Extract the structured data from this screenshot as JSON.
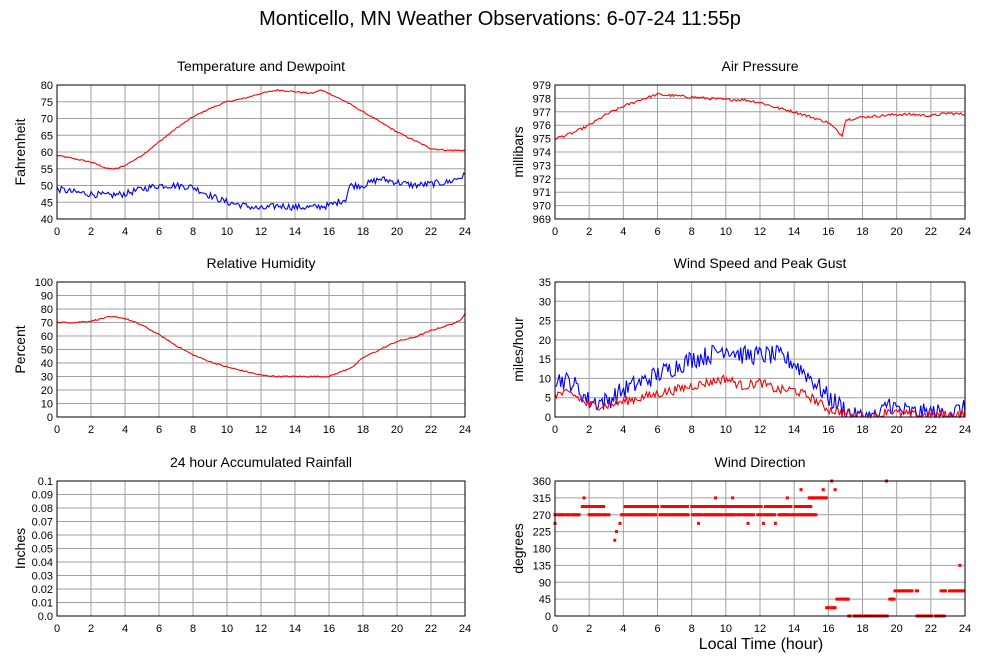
{
  "title": "Monticello, MN Weather Observations: 6-07-24 11:55p",
  "x_axis_title": "Local Time (hour)",
  "colors": {
    "red": "#ff0000",
    "blue": "#0000ff",
    "grid": "#a0a0a0",
    "frame": "#000000"
  },
  "chart_data": [
    {
      "id": "temp",
      "type": "line",
      "title": "Temperature and Dewpoint",
      "ylabel": "Fahrenheit",
      "xlim": [
        0,
        24
      ],
      "ylim": [
        40,
        80
      ],
      "xticks": [
        0,
        2,
        4,
        6,
        8,
        10,
        12,
        14,
        16,
        18,
        20,
        22,
        24
      ],
      "yticks": [
        40,
        45,
        50,
        55,
        60,
        65,
        70,
        75,
        80
      ],
      "grid": true,
      "series": [
        {
          "color": "#ff0000",
          "noise": 0.2,
          "x": [
            0,
            1,
            2,
            3,
            3.5,
            4,
            5,
            6,
            7,
            8,
            9,
            10,
            11,
            12,
            13,
            14,
            15,
            15.5,
            16,
            17,
            18,
            19,
            20,
            21,
            22,
            23,
            24
          ],
          "y": [
            59,
            58,
            57,
            55,
            55,
            56,
            59,
            63,
            67,
            70.5,
            73,
            75,
            76,
            77.5,
            78.5,
            78,
            77.5,
            78.5,
            77.5,
            75,
            72,
            69,
            66,
            63.5,
            61,
            60.5,
            60.5
          ]
        },
        {
          "color": "#0000ff",
          "noise": 1.0,
          "x": [
            0,
            1,
            2,
            3,
            4,
            5,
            6,
            7,
            8,
            9,
            10,
            11,
            12,
            13,
            14,
            15,
            16,
            17,
            17.2,
            18,
            19,
            20,
            21,
            22,
            23,
            24
          ],
          "y": [
            49,
            48,
            47.5,
            47,
            47.5,
            49,
            50,
            50,
            49.5,
            47,
            45,
            44,
            43,
            44,
            43.5,
            43.5,
            44,
            46,
            50,
            50,
            52,
            51,
            50,
            50.5,
            51,
            53
          ]
        }
      ]
    },
    {
      "id": "pressure",
      "type": "line",
      "title": "Air Pressure",
      "ylabel": "millibars",
      "xlim": [
        0,
        24
      ],
      "ylim": [
        969,
        979
      ],
      "xticks": [
        0,
        2,
        4,
        6,
        8,
        10,
        12,
        14,
        16,
        18,
        20,
        22,
        24
      ],
      "yticks": [
        969,
        970,
        971,
        972,
        973,
        974,
        975,
        976,
        977,
        978,
        979
      ],
      "grid": true,
      "series": [
        {
          "color": "#ff0000",
          "noise": 0.1,
          "x": [
            0,
            1,
            2,
            3,
            4,
            5,
            6,
            7,
            8,
            9,
            10,
            11,
            12,
            13,
            14,
            15,
            16,
            16.5,
            16.8,
            17,
            18,
            19,
            20,
            21,
            22,
            23,
            24
          ],
          "y": [
            975,
            975.4,
            976,
            976.8,
            977.4,
            977.9,
            978.3,
            978.2,
            978.1,
            978.0,
            977.9,
            977.9,
            977.7,
            977.3,
            977.0,
            976.6,
            976.2,
            975.6,
            975.2,
            976.4,
            976.6,
            976.7,
            976.8,
            976.8,
            976.7,
            976.9,
            976.8
          ]
        }
      ]
    },
    {
      "id": "humidity",
      "type": "line",
      "title": "Relative Humidity",
      "ylabel": "Percent",
      "xlim": [
        0,
        24
      ],
      "ylim": [
        0,
        100
      ],
      "xticks": [
        0,
        2,
        4,
        6,
        8,
        10,
        12,
        14,
        16,
        18,
        20,
        22,
        24
      ],
      "yticks": [
        0,
        10,
        20,
        30,
        40,
        50,
        60,
        70,
        80,
        90,
        100
      ],
      "grid": true,
      "series": [
        {
          "color": "#ff0000",
          "noise": 0.5,
          "x": [
            0,
            1,
            2,
            3,
            3.5,
            4,
            5,
            6,
            7,
            8,
            9,
            10,
            11,
            12,
            13,
            14,
            15,
            16,
            17,
            17.5,
            18,
            19,
            20,
            21,
            22,
            23,
            23.7,
            24
          ],
          "y": [
            70,
            70,
            71,
            74,
            74,
            73,
            68,
            61,
            53,
            46,
            41,
            37,
            34,
            31,
            30,
            30,
            30,
            30,
            35,
            38,
            44,
            50,
            56,
            59,
            64,
            68,
            71,
            77
          ]
        }
      ]
    },
    {
      "id": "wind",
      "type": "line",
      "title": "Wind Speed and Peak Gust",
      "ylabel": "miles/hour",
      "xlim": [
        0,
        24
      ],
      "ylim": [
        0,
        35
      ],
      "xticks": [
        0,
        2,
        4,
        6,
        8,
        10,
        12,
        14,
        16,
        18,
        20,
        22,
        24
      ],
      "yticks": [
        0,
        5,
        10,
        15,
        20,
        25,
        30,
        35
      ],
      "grid": true,
      "series": [
        {
          "color": "#0000ff",
          "noise": 2.5,
          "x": [
            0,
            1,
            2,
            3,
            4,
            5,
            6,
            7,
            8,
            9,
            10,
            11,
            12,
            13,
            14,
            15,
            16,
            17,
            17.5,
            19,
            19.5,
            20,
            21,
            22,
            23,
            24
          ],
          "y": [
            10,
            9,
            4,
            4,
            7,
            9,
            11,
            13,
            15,
            16,
            18,
            16,
            16,
            16,
            14,
            10,
            5,
            2,
            0,
            0,
            4,
            2,
            1,
            1,
            1,
            2
          ]
        },
        {
          "color": "#ff0000",
          "noise": 1.2,
          "x": [
            0,
            1,
            2,
            3,
            4,
            5,
            6,
            7,
            8,
            9,
            10,
            11,
            12,
            13,
            14,
            15,
            16,
            17,
            17.5,
            19,
            19.5,
            20,
            21,
            22,
            23,
            24
          ],
          "y": [
            6,
            6,
            3,
            3,
            4,
            5,
            6,
            7,
            8,
            9,
            10,
            8,
            9,
            7,
            7,
            5,
            2,
            1,
            0,
            0,
            2,
            1,
            0.5,
            0.5,
            0.5,
            1
          ]
        }
      ]
    },
    {
      "id": "rain",
      "type": "line",
      "title": "24 hour Accumulated Rainfall",
      "ylabel": "Inches",
      "xlim": [
        0,
        24
      ],
      "ylim": [
        0,
        0.1
      ],
      "xticks": [
        0,
        2,
        4,
        6,
        8,
        10,
        12,
        14,
        16,
        18,
        20,
        22,
        24
      ],
      "yticks": [
        "0.0",
        "0.01",
        "0.02",
        "0.03",
        "0.04",
        "0.05",
        "0.06",
        "0.07",
        "0.08",
        "0.09",
        "0.1"
      ],
      "grid": true,
      "series": [
        {
          "color": "#ff0000",
          "noise": 0,
          "x": [
            0,
            24
          ],
          "y": [
            0,
            0
          ]
        }
      ]
    },
    {
      "id": "direction",
      "type": "scatter",
      "title": "Wind Direction",
      "ylabel": "degrees",
      "xlim": [
        0,
        24
      ],
      "ylim": [
        0,
        360
      ],
      "xticks": [
        0,
        2,
        4,
        6,
        8,
        10,
        12,
        14,
        16,
        18,
        20,
        22,
        24
      ],
      "yticks": [
        0,
        45,
        90,
        135,
        180,
        225,
        270,
        315,
        360
      ],
      "grid": true,
      "series": [
        {
          "color": "#ff0000",
          "segments": [
            {
              "x0": 0,
              "x1": 1.5,
              "y": 270
            },
            {
              "x0": 1.6,
              "x1": 2.9,
              "y": 292
            },
            {
              "x0": 2.0,
              "x1": 3.3,
              "y": 270
            },
            {
              "x0": 3.9,
              "x1": 15.3,
              "y": 270
            },
            {
              "x0": 4.1,
              "x1": 15.0,
              "y": 292
            },
            {
              "x0": 14.8,
              "x1": 15.9,
              "y": 315
            },
            {
              "x0": 15.9,
              "x1": 16.4,
              "y": 22
            },
            {
              "x0": 16.5,
              "x1": 17.2,
              "y": 45
            },
            {
              "x0": 17.2,
              "x1": 19.5,
              "y": 0
            },
            {
              "x0": 19.6,
              "x1": 19.9,
              "y": 45
            },
            {
              "x0": 19.9,
              "x1": 21.3,
              "y": 67
            },
            {
              "x0": 21.2,
              "x1": 22.8,
              "y": 0
            },
            {
              "x0": 22.6,
              "x1": 24,
              "y": 67
            }
          ],
          "points": [
            {
              "x": 0,
              "y": 247
            },
            {
              "x": 1.7,
              "y": 315
            },
            {
              "x": 3.5,
              "y": 202
            },
            {
              "x": 3.6,
              "y": 225
            },
            {
              "x": 3.8,
              "y": 247
            },
            {
              "x": 8.4,
              "y": 247
            },
            {
              "x": 9.4,
              "y": 315
            },
            {
              "x": 10.4,
              "y": 315
            },
            {
              "x": 11.3,
              "y": 247
            },
            {
              "x": 12.2,
              "y": 247
            },
            {
              "x": 12.9,
              "y": 247
            },
            {
              "x": 13.6,
              "y": 315
            },
            {
              "x": 14.4,
              "y": 337
            },
            {
              "x": 15.7,
              "y": 337
            },
            {
              "x": 16.2,
              "y": 360
            },
            {
              "x": 16.4,
              "y": 337
            },
            {
              "x": 19.4,
              "y": 360
            },
            {
              "x": 23.7,
              "y": 135
            }
          ]
        }
      ]
    }
  ]
}
